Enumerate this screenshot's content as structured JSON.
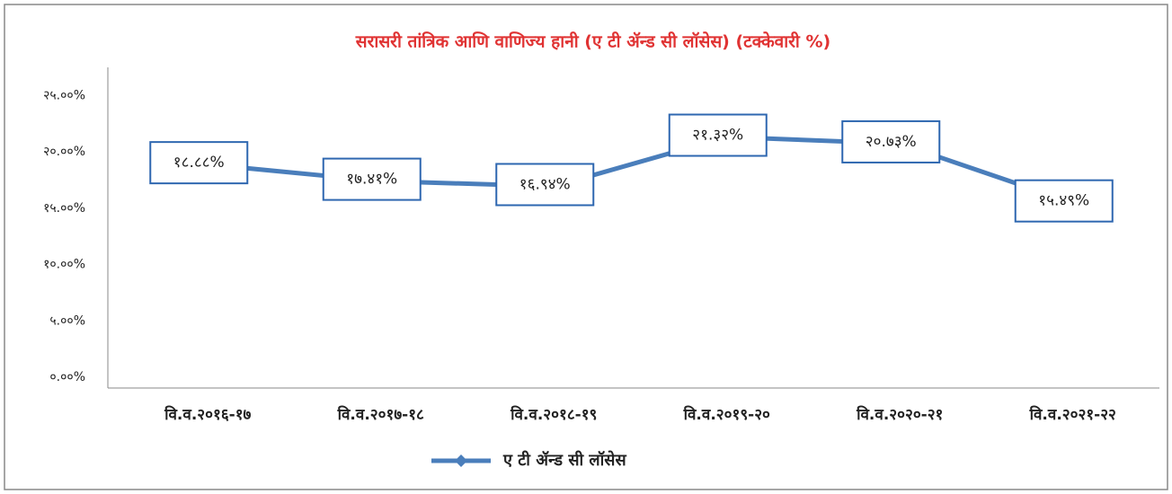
{
  "chart_data": {
    "type": "line",
    "title": "सरासरी तांत्रिक आणि वाणिज्य हानी (ए टी ॲन्ड सी लॉसेस) (टक्केवारी %)",
    "categories": [
      "वि.व.२०१६-१७",
      "वि.व.२०१७-१८",
      "वि.व.२०१८-१९",
      "वि.व.२०१९-२०",
      "वि.व.२०२०-२१",
      "वि.व.२०२१-२२"
    ],
    "series": [
      {
        "name": "ए टी ॲन्ड सी लॉसेस",
        "color": "#4a7ebb",
        "values": [
          18.88,
          17.41,
          16.94,
          21.32,
          20.73,
          15.49
        ],
        "value_labels": [
          "१८.८८%",
          "१७.४१%",
          "१६.९४%",
          "२१.३२%",
          "२०.७३%",
          "१५.४९%"
        ]
      }
    ],
    "ylim": [
      0,
      27.5
    ],
    "yticks": [
      {
        "value": 0,
        "label": "०.००%"
      },
      {
        "value": 5,
        "label": "५.००%"
      },
      {
        "value": 10,
        "label": "१०.००%"
      },
      {
        "value": 15,
        "label": "१५.००%"
      },
      {
        "value": 20,
        "label": "२०.००%"
      },
      {
        "value": 25,
        "label": "२५.००%"
      }
    ],
    "grid": false,
    "legend": "bottom"
  }
}
